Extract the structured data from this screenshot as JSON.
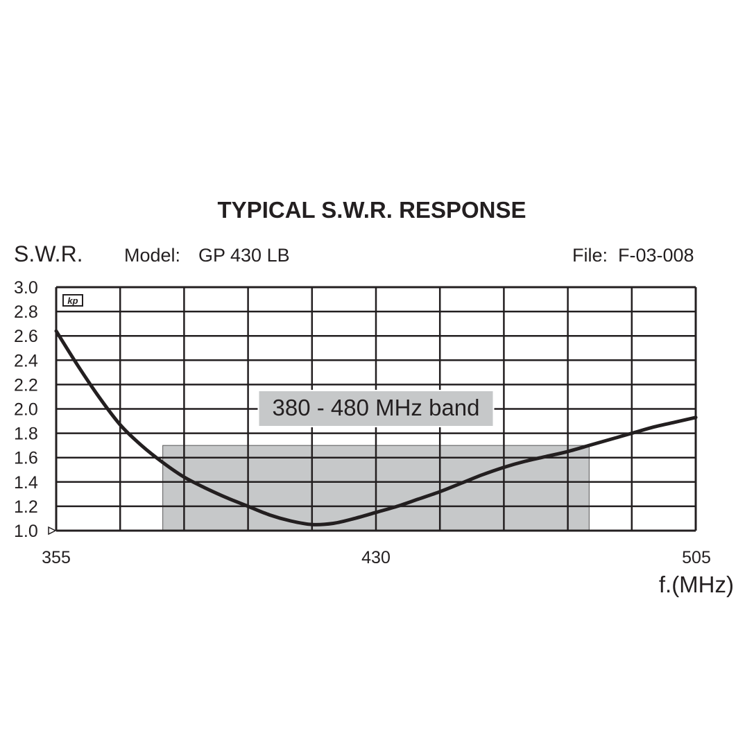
{
  "chart_data": {
    "type": "line",
    "title": "TYPICAL S.W.R. RESPONSE",
    "ylabel": "S.W.R.",
    "xlabel": "f.(MHz)",
    "model_label": "Model:",
    "model_value": "GP 430 LB",
    "file_label": "File:",
    "file_value": "F-03-008",
    "logo_text": "kp",
    "xlim": [
      355,
      505
    ],
    "ylim": [
      1.0,
      3.0
    ],
    "x_ticks": [
      "355",
      "430",
      "505"
    ],
    "y_ticks": [
      "3.0",
      "2.8",
      "2.6",
      "2.4",
      "2.2",
      "2.0",
      "1.8",
      "1.6",
      "1.4",
      "1.2",
      "1.0"
    ],
    "x_grid_step": 15,
    "y_grid_step": 0.2,
    "grid": true,
    "band": {
      "label": "380 - 480 MHz band",
      "x_start": 380,
      "x_end": 480,
      "y_top": 1.7,
      "color": "#c6c8c9"
    },
    "series": [
      {
        "color": "#231f20",
        "x": [
          355,
          360,
          365,
          370,
          375,
          380,
          385,
          390,
          395,
          400,
          405,
          410,
          415,
          420,
          425,
          430,
          435,
          440,
          445,
          450,
          455,
          460,
          465,
          470,
          475,
          480,
          485,
          490,
          495,
          500,
          505
        ],
        "y": [
          2.64,
          2.36,
          2.1,
          1.87,
          1.7,
          1.56,
          1.44,
          1.35,
          1.27,
          1.2,
          1.13,
          1.08,
          1.05,
          1.06,
          1.1,
          1.15,
          1.2,
          1.26,
          1.32,
          1.39,
          1.46,
          1.52,
          1.57,
          1.61,
          1.65,
          1.7,
          1.75,
          1.8,
          1.85,
          1.89,
          1.93
        ]
      }
    ]
  }
}
